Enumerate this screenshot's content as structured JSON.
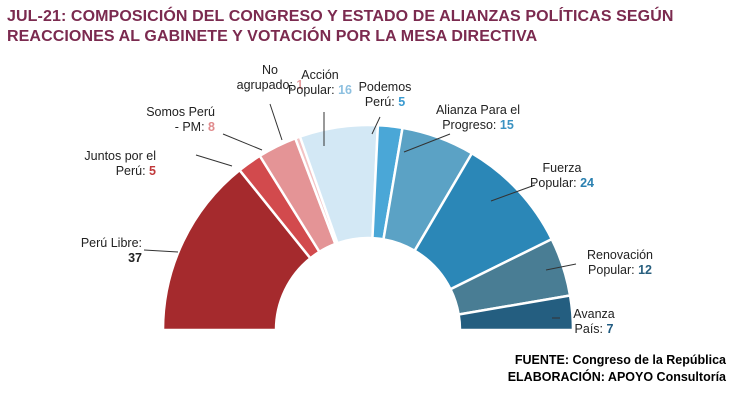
{
  "title_line1": "JUL-21: COMPOSICIÓN DEL CONGRESO Y ESTADO DE ALIANZAS POLÍTICAS SEGÚN",
  "title_line2": "REACCIONES AL GABINETE Y VOTACIÓN POR LA MESA DIRECTIVA",
  "source_line1": "FUENTE: Congreso de la República",
  "source_line2": "ELABORACIÓN: APOYO Consultoría",
  "chart_data": {
    "type": "pie",
    "shape": "semicircle-donut",
    "categories": [
      "Perú Libre",
      "Juntos por el Perú",
      "Somos Perú - PM",
      "No agrupado",
      "Acción Popular",
      "Podemos Perú",
      "Alianza Para el Progreso",
      "Fuerza Popular",
      "Renovación Popular",
      "Avanza País"
    ],
    "values": [
      37,
      5,
      8,
      1,
      16,
      5,
      15,
      24,
      12,
      7
    ],
    "colors": [
      "#a52a2d",
      "#d24a4d",
      "#e49496",
      "#f2c3c4",
      "#d3e8f5",
      "#4aa7d7",
      "#5ba2c5",
      "#2b87b7",
      "#497d94",
      "#245e80"
    ],
    "value_colors": [
      "#c0393b",
      "#c0393b",
      "#e08a8c",
      "#e8a0a2",
      "#8dc0e0",
      "#3a9ad0",
      "#3a92c2",
      "#2a80b0",
      "#285f7e",
      "#1f5a80"
    ],
    "label_lines": [
      [
        "Perú Libre:"
      ],
      [
        "Juntos por el",
        "Perú:"
      ],
      [
        "Somos Perú",
        "- PM:"
      ],
      [
        "No",
        "agrupado:"
      ],
      [
        "Acción",
        "Popular:"
      ],
      [
        "Podemos",
        "Perú:"
      ],
      [
        "Alianza Para el",
        "Progreso:"
      ],
      [
        "Fuerza",
        "Popular:"
      ],
      [
        "Renovación",
        "Popular:"
      ],
      [
        "Avanza",
        "País:"
      ]
    ]
  }
}
